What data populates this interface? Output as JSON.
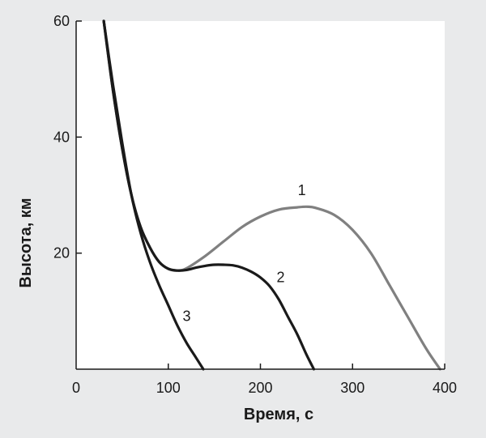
{
  "chart_data": {
    "type": "line",
    "xlabel": "Время, с",
    "ylabel": "Высота, км",
    "xlim": [
      0,
      400
    ],
    "ylim": [
      0,
      60
    ],
    "xticks": [
      0,
      100,
      200,
      300,
      400
    ],
    "yticks": [
      20,
      40,
      60
    ],
    "grid": false,
    "series": [
      {
        "name": "1",
        "color": "#808080",
        "x": [
          30,
          40,
          50,
          60,
          70,
          80,
          90,
          100,
          110,
          120,
          140,
          160,
          180,
          200,
          220,
          240,
          250,
          260,
          280,
          300,
          320,
          340,
          360,
          380,
          395
        ],
        "y": [
          60,
          48,
          38,
          30,
          24.5,
          21,
          18.5,
          17.3,
          17.0,
          17.4,
          19.5,
          22,
          24.5,
          26.3,
          27.5,
          27.9,
          28.0,
          27.8,
          26.6,
          24,
          20,
          14.5,
          9,
          3.5,
          0
        ]
      },
      {
        "name": "2",
        "color": "#1a1a1a",
        "x": [
          30,
          40,
          50,
          60,
          70,
          80,
          90,
          100,
          110,
          120,
          130,
          140,
          150,
          160,
          170,
          180,
          190,
          200,
          210,
          220,
          230,
          240,
          250,
          258
        ],
        "y": [
          60,
          48,
          38,
          30,
          24.5,
          21,
          18.5,
          17.3,
          17.0,
          17.1,
          17.5,
          17.8,
          18.0,
          18.0,
          17.9,
          17.5,
          16.8,
          15.8,
          14.3,
          12,
          9,
          6,
          2.5,
          0
        ]
      },
      {
        "name": "3",
        "color": "#1a1a1a",
        "x": [
          30,
          40,
          50,
          60,
          70,
          80,
          90,
          100,
          110,
          120,
          130,
          138
        ],
        "y": [
          60,
          49,
          39,
          30,
          23.5,
          18.5,
          14.5,
          11,
          7.5,
          4.5,
          2,
          0
        ]
      }
    ],
    "annotations": [
      {
        "text": "1",
        "x": 245,
        "y": 30.0
      },
      {
        "text": "2",
        "x": 222,
        "y": 15.0
      },
      {
        "text": "3",
        "x": 120,
        "y": 8.3
      }
    ]
  }
}
